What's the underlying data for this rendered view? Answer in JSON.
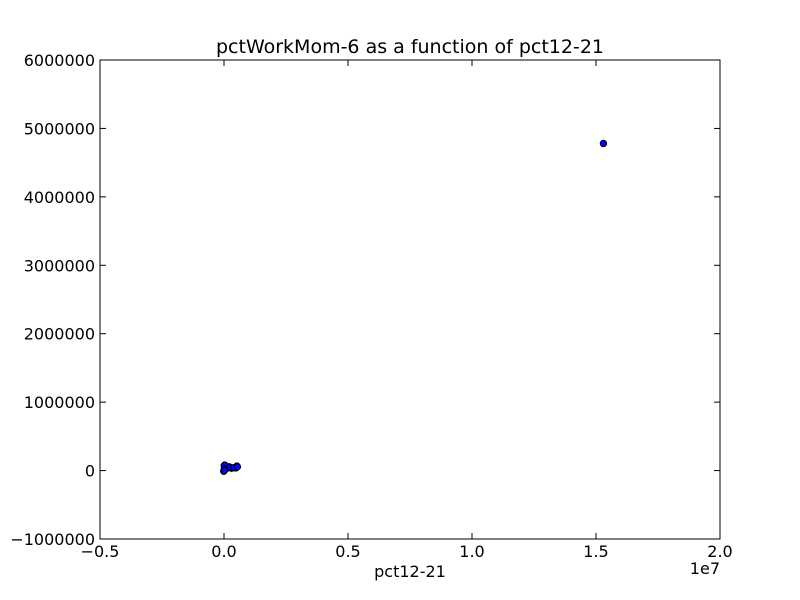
{
  "chart_data": {
    "type": "scatter",
    "title": "pctWorkMom-6 as a function of pct12-21",
    "xlabel": "pct12-21",
    "ylabel": "",
    "x_offset_label": "1e7",
    "xlim": [
      -5000000,
      20000000
    ],
    "ylim": [
      -1000000,
      6000000
    ],
    "x_ticks": [
      -5000000,
      0,
      5000000,
      10000000,
      15000000,
      20000000
    ],
    "x_tick_labels": [
      "−0.5",
      "0.0",
      "0.5",
      "1.0",
      "1.5",
      "2.0"
    ],
    "y_ticks": [
      -1000000,
      0,
      1000000,
      2000000,
      3000000,
      4000000,
      5000000,
      6000000
    ],
    "y_tick_labels": [
      "−1000000",
      "0",
      "1000000",
      "2000000",
      "3000000",
      "4000000",
      "5000000",
      "6000000"
    ],
    "grid": false,
    "marker_color": "#0000ff",
    "series": [
      {
        "x": [
          15300000,
          520000,
          480000,
          150000,
          60000,
          20000,
          0,
          -10000,
          50000,
          100000,
          10000,
          200000,
          300000,
          5000,
          30000,
          80000,
          250000,
          400000,
          540000,
          15000
        ],
        "y": [
          4780000,
          65000,
          40000,
          50000,
          30000,
          20000,
          0,
          -10000,
          60000,
          45000,
          70000,
          55000,
          35000,
          10000,
          80000,
          25000,
          48000,
          42000,
          55000,
          5000
        ]
      }
    ]
  }
}
